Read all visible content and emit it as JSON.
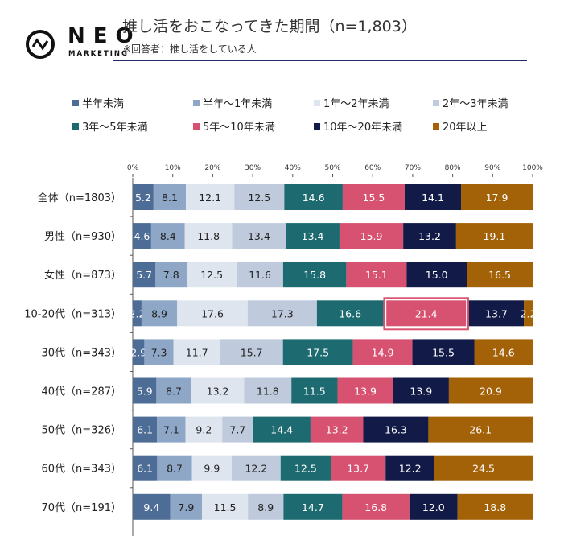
{
  "logo": {
    "text": "NEO",
    "sub": "MARKETING"
  },
  "header": {
    "title": "推し活をおこなってきた期間（n=1,803）",
    "subtitle": "※回答者：推し活をしている人"
  },
  "chart_data": {
    "type": "bar",
    "orientation": "horizontal",
    "stacked": "percent",
    "title": "推し活をおこなってきた期間（n=1,803）",
    "xlim": [
      0,
      100
    ],
    "xticks": [
      "0%",
      "10%",
      "20%",
      "30%",
      "40%",
      "50%",
      "60%",
      "70%",
      "80%",
      "90%",
      "100%"
    ],
    "legend_position": "top",
    "categories": [
      "全体（n=1803）",
      "男性（n=930）",
      "女性（n=873）",
      "10-20代（n=313）",
      "30代（n=343）",
      "40代（n=287）",
      "50代（n=326）",
      "60代（n=343）",
      "70代（n=191）"
    ],
    "series": [
      {
        "name": "半年未満",
        "color": "#4e6d96",
        "values": [
          5.2,
          4.6,
          5.7,
          2.2,
          2.9,
          5.9,
          6.1,
          6.1,
          9.4
        ]
      },
      {
        "name": "半年～1年未満",
        "color": "#8fa7c7",
        "values": [
          8.1,
          8.4,
          7.8,
          8.9,
          7.3,
          8.7,
          7.1,
          8.7,
          7.9
        ]
      },
      {
        "name": "1年～2年未満",
        "color": "#dfe5ef",
        "values": [
          12.1,
          11.8,
          12.5,
          17.6,
          11.7,
          13.2,
          9.2,
          9.9,
          11.5
        ]
      },
      {
        "name": "2年～3年未満",
        "color": "#bfcbdd",
        "values": [
          12.5,
          13.4,
          11.6,
          17.3,
          15.7,
          11.8,
          7.7,
          12.2,
          8.9
        ]
      },
      {
        "name": "3年～5年未満",
        "color": "#1d6b70",
        "values": [
          14.6,
          13.4,
          15.8,
          16.6,
          17.5,
          11.5,
          14.4,
          12.5,
          14.7
        ]
      },
      {
        "name": "5年～10年未満",
        "color": "#d65270",
        "values": [
          15.5,
          15.9,
          15.1,
          21.4,
          14.9,
          13.9,
          13.2,
          13.7,
          16.8
        ]
      },
      {
        "name": "10年～20年未満",
        "color": "#121a47",
        "values": [
          14.1,
          13.2,
          15.0,
          13.7,
          15.5,
          13.9,
          16.3,
          12.2,
          12.0
        ]
      },
      {
        "name": "20年以上",
        "color": "#a36108",
        "values": [
          17.9,
          19.1,
          16.5,
          2.2,
          14.6,
          20.9,
          26.1,
          24.5,
          18.8
        ]
      }
    ],
    "highlight": {
      "category": "10-20代（n=313）",
      "series": "5年～10年未満",
      "color": "#d65270"
    }
  }
}
